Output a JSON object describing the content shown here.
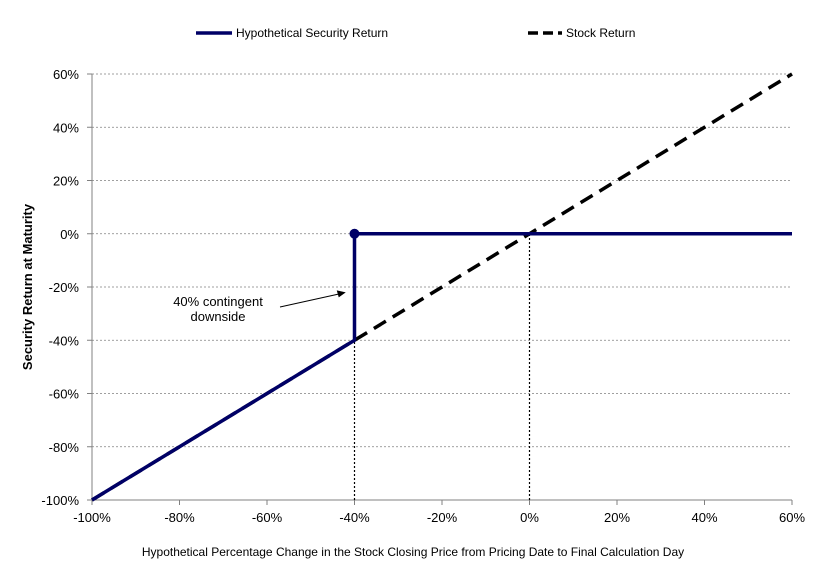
{
  "chart_data": {
    "type": "line",
    "title": "",
    "xlabel": "Hypothetical Percentage Change in the Stock Closing Price from Pricing Date to Final Calculation Day",
    "ylabel": "Security Return at Maturity",
    "xlim": [
      -100,
      60
    ],
    "ylim": [
      -100,
      60
    ],
    "x_ticks": [
      -100,
      -80,
      -60,
      -40,
      -20,
      0,
      20,
      40,
      60
    ],
    "y_ticks": [
      -100,
      -80,
      -60,
      -40,
      -20,
      0,
      20,
      40,
      60
    ],
    "x_tick_labels": [
      "-100%",
      "-80%",
      "-60%",
      "-40%",
      "-20%",
      "0%",
      "20%",
      "40%",
      "60%"
    ],
    "y_tick_labels": [
      "-100%",
      "-80%",
      "-60%",
      "-40%",
      "-20%",
      "0%",
      "20%",
      "40%",
      "60%"
    ],
    "grid": "horizontal-dashed",
    "legend_position": "top",
    "series": [
      {
        "name": "Hypothetical Security Return",
        "color": "#000066",
        "style": "solid",
        "x": [
          -100,
          -40,
          -40,
          60
        ],
        "y": [
          -100,
          -40,
          0,
          0
        ],
        "marker_point": [
          -40,
          0
        ]
      },
      {
        "name": "Stock Return",
        "color": "#000000",
        "style": "dashed",
        "x": [
          -100,
          60
        ],
        "y": [
          -100,
          60
        ]
      }
    ],
    "reference_lines": [
      {
        "x": -40,
        "y_from": -100,
        "y_to": 0,
        "style": "dotted"
      },
      {
        "x": 0,
        "y_from": -100,
        "y_to": 0,
        "style": "dotted"
      }
    ],
    "annotations": [
      {
        "lines": [
          "40% contingent",
          "downside"
        ],
        "arrow_to": [
          -42,
          -22
        ]
      }
    ]
  }
}
